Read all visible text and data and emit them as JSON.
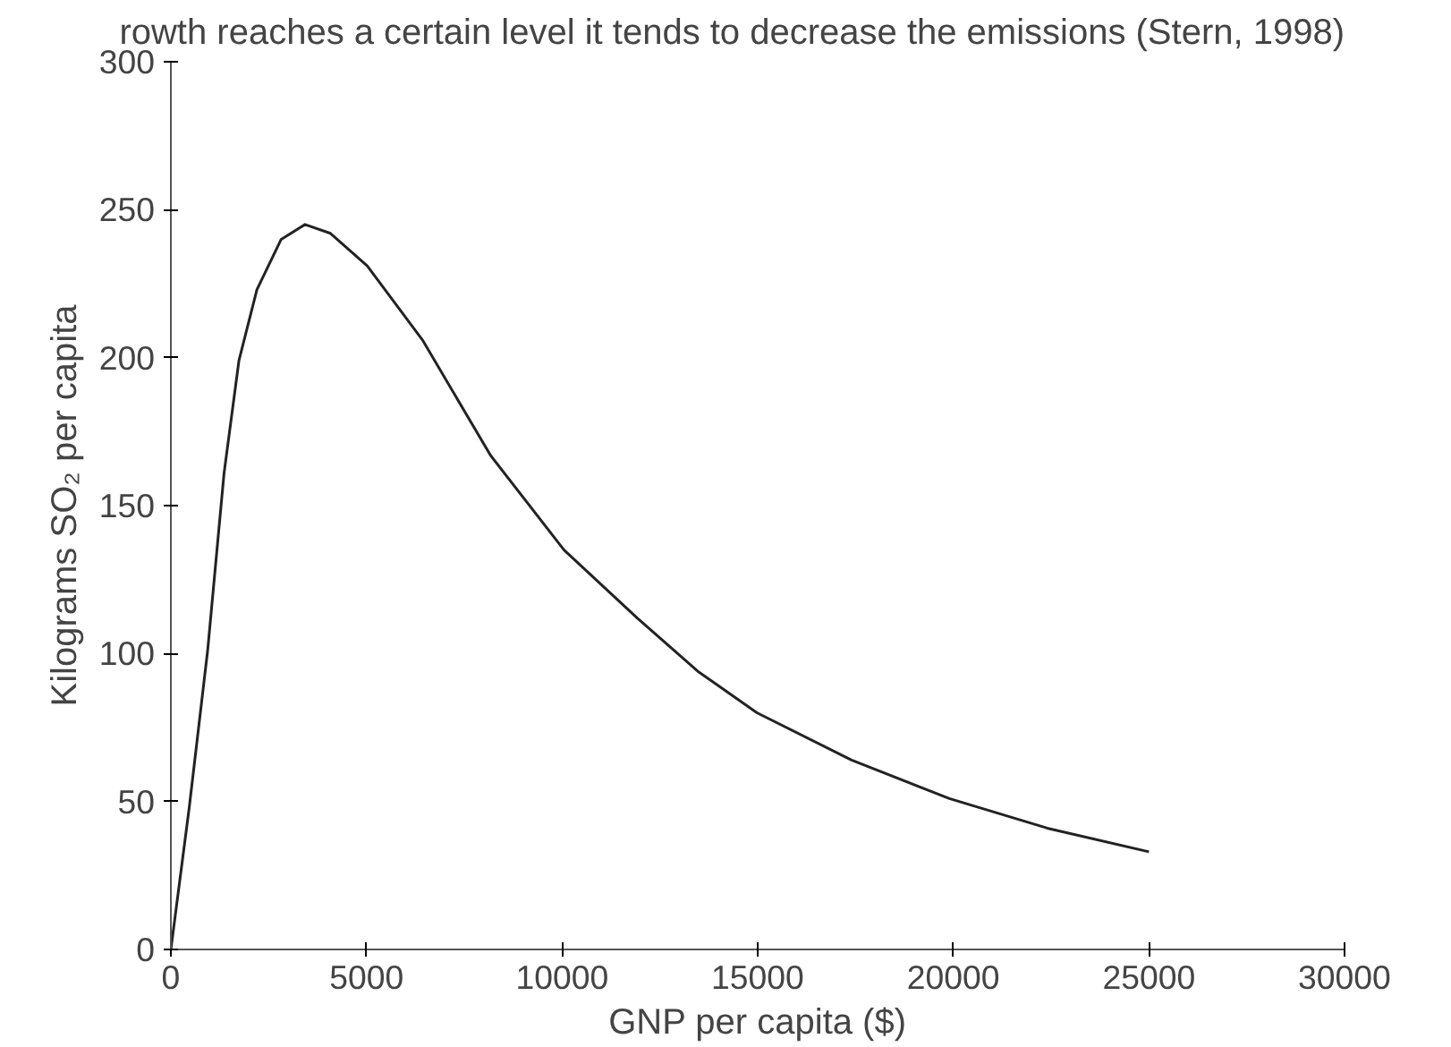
{
  "chart_data": {
    "type": "line",
    "xlabel": "GNP per capita ($)",
    "ylabel": "Kilograms SO₂ per capita",
    "annotations": [
      "rowth reaches a certain level it tends to decrease the emissions (Stern, 1998)"
    ],
    "series": [
      {
        "color": "#222222",
        "x": [
          0,
          470,
          940,
          1360,
          1740,
          2200,
          2820,
          3430,
          4080,
          5020,
          6430,
          8170,
          10050,
          11920,
          13470,
          14980,
          17400,
          19900,
          22400,
          25000
        ],
        "values": [
          0,
          48,
          101,
          161,
          199,
          223,
          240,
          245,
          242,
          231,
          206,
          167,
          135,
          112,
          94,
          80,
          64,
          51,
          41,
          33
        ]
      }
    ],
    "xlim": [
      0,
      30000
    ],
    "ylim": [
      0,
      300
    ],
    "xticks": [
      0,
      5000,
      10000,
      15000,
      20000,
      25000,
      30000
    ],
    "yticks": [
      0,
      50,
      100,
      150,
      200,
      250,
      300
    ],
    "marker": "none",
    "line_style": "solid"
  }
}
